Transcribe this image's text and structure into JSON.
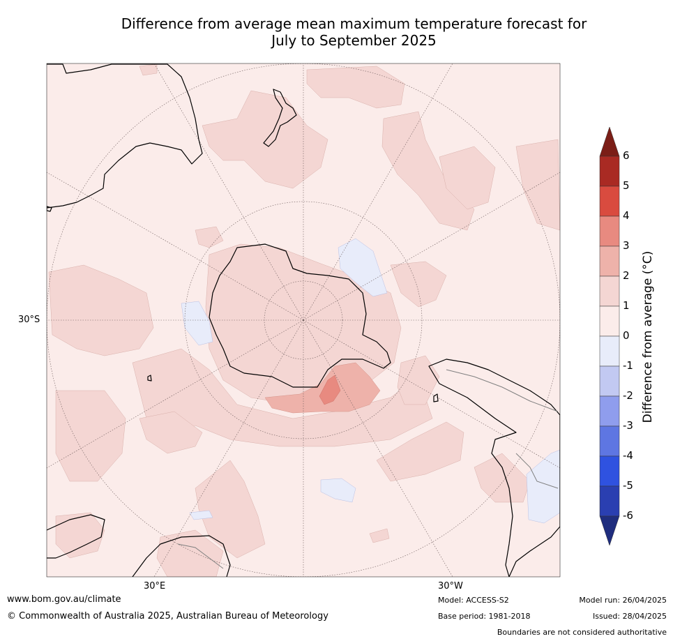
{
  "title_line1": "Difference from average mean maximum temperature forecast for",
  "title_line2": "July to September 2025",
  "map": {
    "projection": "south-polar-stereographic",
    "lat_label": "30°S",
    "lon_label_east": "30°E",
    "lon_label_west": "30°W"
  },
  "colorbar": {
    "title": "Difference from average (°C)",
    "ticks": [
      "6",
      "5",
      "4",
      "3",
      "2",
      "1",
      "0",
      "-1",
      "-2",
      "-3",
      "-4",
      "-5",
      "-6"
    ],
    "colors": {
      "over": "#7b1e17",
      "5 to 6": "#a92a23",
      "4 to 5": "#d94b3f",
      "3 to 4": "#e88a80",
      "2 to 3": "#eeb2aa",
      "1 to 2": "#f4d6d3",
      "0 to 1": "#fbecea",
      "-1 to 0": "#e8ecfa",
      "-2 to -1": "#c2c9f2",
      "-3 to -2": "#8f9ded",
      "-4 to -3": "#5e76e2",
      "-5 to -4": "#2f52e0",
      "-6 to -5": "#2a3fb1",
      "under": "#1f2d7e"
    }
  },
  "footer": {
    "url": "www.bom.gov.au/climate",
    "copyright": "© Commonwealth of Australia 2025, Australian Bureau of Meteorology",
    "model": "Model: ACCESS-S2",
    "base_period": "Base period: 1981-2018",
    "model_run": "Model run: 26/04/2025",
    "issued": "Issued: 28/04/2025",
    "disclaimer": "Boundaries are not considered authoritative"
  }
}
